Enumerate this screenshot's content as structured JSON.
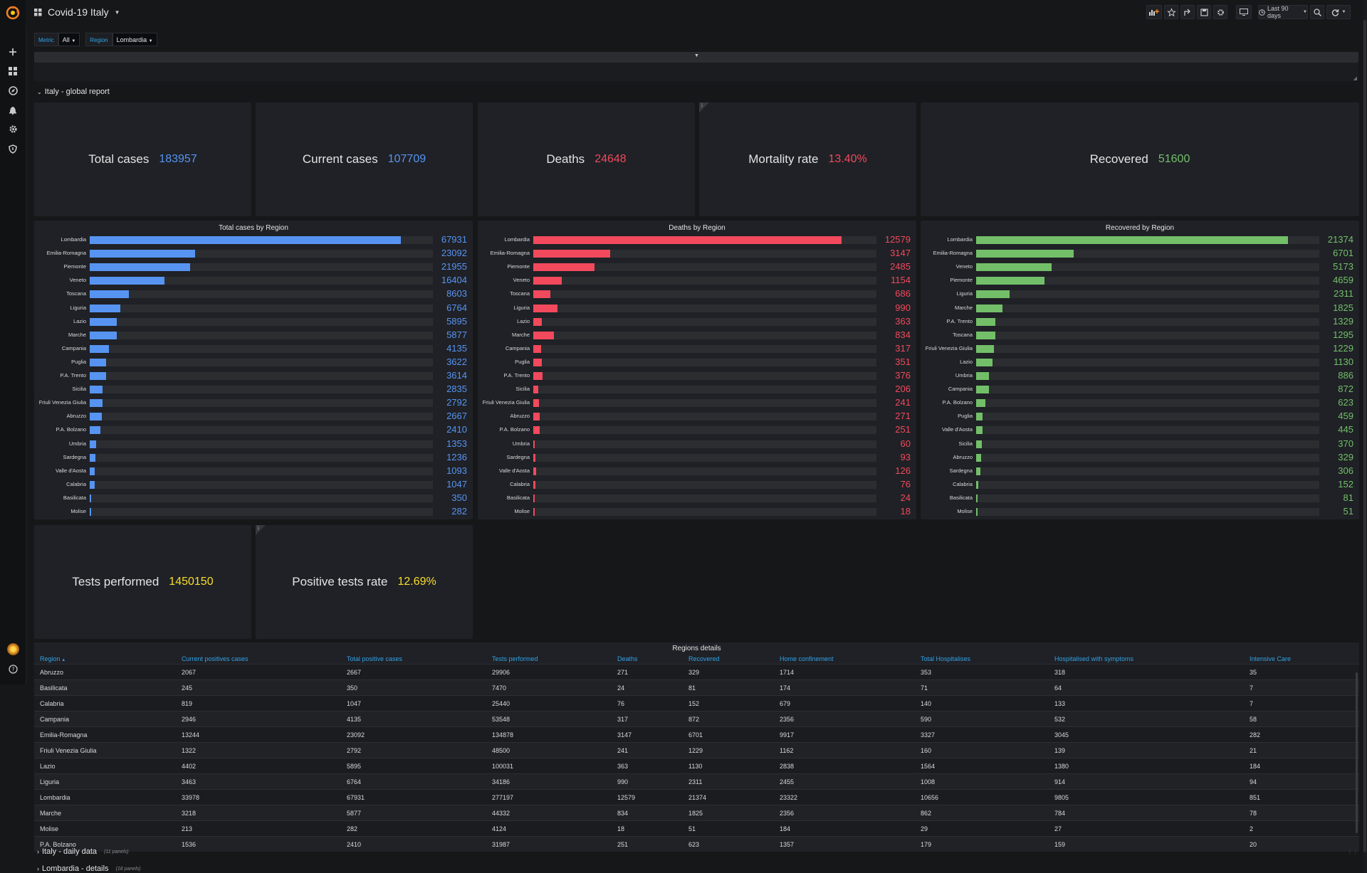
{
  "navbar": {
    "dashboard_title": "Covid-19 Italy",
    "time_range": "Last 90 days"
  },
  "variables": [
    {
      "label": "Metric",
      "value": "All"
    },
    {
      "label": "Region",
      "value": "Lombardia"
    }
  ],
  "rows": {
    "global_report": "Italy - global report",
    "daily_data": "Italy - daily data",
    "daily_data_count": "(11 panels)",
    "lombardia_details": "Lombardia - details",
    "lombardia_details_count": "(18 panels)"
  },
  "stats": {
    "total_cases": {
      "label": "Total cases",
      "value": "183957",
      "color": "#5794f2"
    },
    "current_cases": {
      "label": "Current cases",
      "value": "107709",
      "color": "#5794f2"
    },
    "deaths": {
      "label": "Deaths",
      "value": "24648",
      "color": "#f2495c"
    },
    "mortality": {
      "label": "Mortality rate",
      "value": "13.40%",
      "color": "#f2495c"
    },
    "recovered": {
      "label": "Recovered",
      "value": "51600",
      "color": "#73bf69"
    },
    "tests": {
      "label": "Tests performed",
      "value": "1450150",
      "color": "#fade2a"
    },
    "positive_rate": {
      "label": "Positive tests rate",
      "value": "12.69%",
      "color": "#fade2a"
    }
  },
  "chart_data": [
    {
      "type": "bar",
      "title": "Total cases by Region",
      "color": "#5794f2",
      "max": 75000,
      "categories": [
        "Lombardia",
        "Emilia-Romagna",
        "Piemonte",
        "Veneto",
        "Toscana",
        "Liguria",
        "Lazio",
        "Marche",
        "Campania",
        "Puglia",
        "P.A. Trento",
        "Sicilia",
        "Friuli Venezia Giulia",
        "Abruzzo",
        "P.A. Bolzano",
        "Umbria",
        "Sardegna",
        "Valle d'Aosta",
        "Calabria",
        "Basilicata",
        "Molise"
      ],
      "values": [
        67931,
        23092,
        21955,
        16404,
        8603,
        6764,
        5895,
        5877,
        4135,
        3622,
        3614,
        2835,
        2792,
        2667,
        2410,
        1353,
        1236,
        1093,
        1047,
        350,
        282
      ]
    },
    {
      "type": "bar",
      "title": "Deaths by Region",
      "color": "#f2495c",
      "max": 14000,
      "categories": [
        "Lombardia",
        "Emilia-Romagna",
        "Piemonte",
        "Veneto",
        "Toscana",
        "Liguria",
        "Lazio",
        "Marche",
        "Campania",
        "Puglia",
        "P.A. Trento",
        "Sicilia",
        "Friuli Venezia Giulia",
        "Abruzzo",
        "P.A. Bolzano",
        "Umbria",
        "Sardegna",
        "Valle d'Aosta",
        "Calabria",
        "Basilicata",
        "Molise"
      ],
      "values": [
        12579,
        3147,
        2485,
        1154,
        686,
        990,
        363,
        834,
        317,
        351,
        376,
        206,
        241,
        271,
        251,
        60,
        93,
        126,
        76,
        24,
        18
      ]
    },
    {
      "type": "bar",
      "title": "Recovered by Region",
      "color": "#73bf69",
      "max": 23500,
      "categories": [
        "Lombardia",
        "Emilia-Romagna",
        "Veneto",
        "Piemonte",
        "Liguria",
        "Marche",
        "P.A. Trento",
        "Toscana",
        "Friuli Venezia Giulia",
        "Lazio",
        "Umbria",
        "Campania",
        "P.A. Bolzano",
        "Puglia",
        "Valle d'Aosta",
        "Sicilia",
        "Abruzzo",
        "Sardegna",
        "Calabria",
        "Basilicata",
        "Molise"
      ],
      "values": [
        21374,
        6701,
        5173,
        4659,
        2311,
        1825,
        1329,
        1295,
        1229,
        1130,
        886,
        872,
        623,
        459,
        445,
        370,
        329,
        306,
        152,
        81,
        51
      ]
    }
  ],
  "table": {
    "title": "Regions details",
    "columns": [
      "Region",
      "Current positives cases",
      "Total positive cases",
      "Tests performed",
      "Deaths",
      "Recovered",
      "Home confinement",
      "Total Hospitalises",
      "Hospitalised with symptoms",
      "Intensive Care"
    ],
    "rows": [
      [
        "Abruzzo",
        "2067",
        "2667",
        "29906",
        "271",
        "329",
        "1714",
        "353",
        "318",
        "35"
      ],
      [
        "Basilicata",
        "245",
        "350",
        "7470",
        "24",
        "81",
        "174",
        "71",
        "64",
        "7"
      ],
      [
        "Calabria",
        "819",
        "1047",
        "25440",
        "76",
        "152",
        "679",
        "140",
        "133",
        "7"
      ],
      [
        "Campania",
        "2946",
        "4135",
        "53548",
        "317",
        "872",
        "2356",
        "590",
        "532",
        "58"
      ],
      [
        "Emilia-Romagna",
        "13244",
        "23092",
        "134878",
        "3147",
        "6701",
        "9917",
        "3327",
        "3045",
        "282"
      ],
      [
        "Friuli Venezia Giulia",
        "1322",
        "2792",
        "48500",
        "241",
        "1229",
        "1162",
        "160",
        "139",
        "21"
      ],
      [
        "Lazio",
        "4402",
        "5895",
        "100031",
        "363",
        "1130",
        "2838",
        "1564",
        "1380",
        "184"
      ],
      [
        "Liguria",
        "3463",
        "6764",
        "34186",
        "990",
        "2311",
        "2455",
        "1008",
        "914",
        "94"
      ],
      [
        "Lombardia",
        "33978",
        "67931",
        "277197",
        "12579",
        "21374",
        "23322",
        "10656",
        "9805",
        "851"
      ],
      [
        "Marche",
        "3218",
        "5877",
        "44332",
        "834",
        "1825",
        "2356",
        "862",
        "784",
        "78"
      ],
      [
        "Molise",
        "213",
        "282",
        "4124",
        "18",
        "51",
        "184",
        "29",
        "27",
        "2"
      ],
      [
        "P.A. Bolzano",
        "1536",
        "2410",
        "31987",
        "251",
        "623",
        "1357",
        "179",
        "159",
        "20"
      ]
    ]
  }
}
